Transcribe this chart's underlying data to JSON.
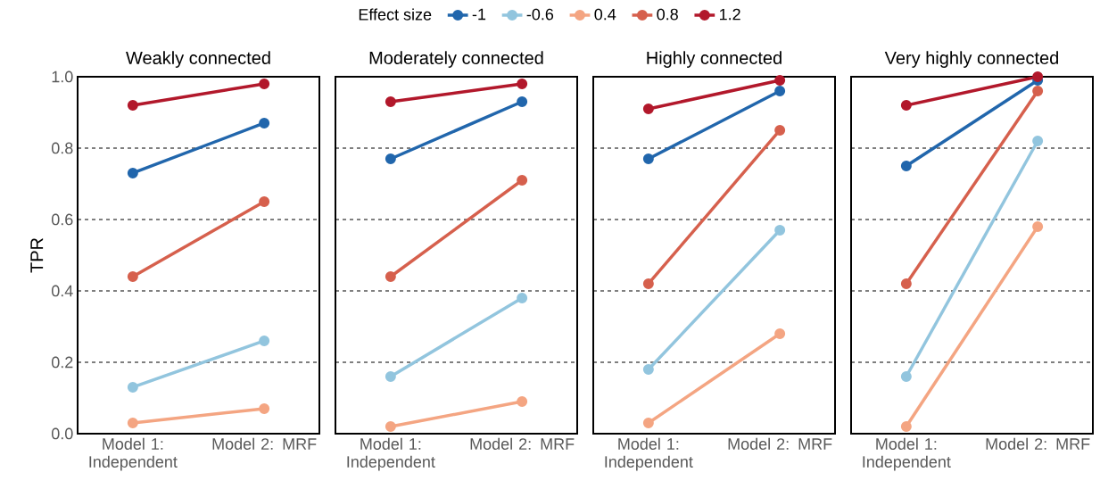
{
  "chart_data": [
    {
      "type": "line",
      "title": "Weakly connected",
      "ylabel": "TPR",
      "legend_title": "Effect size",
      "legend": "top",
      "grid": "y",
      "marker": "circle",
      "line_style": "solid",
      "categories": [
        "Model 1: Independent",
        "Model 2: MRF"
      ],
      "ylim": [
        0,
        1
      ],
      "yticks": [
        {
          "value": 0,
          "label": "0.0"
        },
        0.2,
        0.4,
        0.6,
        0.8,
        {
          "value": 1,
          "label": "1.0"
        }
      ],
      "series": [
        {
          "name": "-1",
          "color": "#2166ac",
          "values": [
            0.73,
            0.87
          ]
        },
        {
          "name": "-0.6",
          "color": "#92c5de",
          "values": [
            0.13,
            0.26
          ]
        },
        {
          "name": "0.4",
          "color": "#f4a582",
          "values": [
            0.03,
            0.07
          ]
        },
        {
          "name": "0.8",
          "color": "#d6604d",
          "values": [
            0.44,
            0.65
          ]
        },
        {
          "name": "1.2",
          "color": "#b2182b",
          "values": [
            0.92,
            0.98
          ]
        }
      ]
    },
    {
      "type": "line",
      "title": "Moderately connected",
      "grid": "y",
      "marker": "circle",
      "line_style": "solid",
      "tick_labels": "x",
      "categories": [
        "Model 1: Independent",
        "Model 2: MRF"
      ],
      "ylim": [
        0,
        1
      ],
      "yticks": [
        0,
        0.2,
        0.4,
        0.6,
        0.8,
        1
      ],
      "series": [
        {
          "color": "#2166ac",
          "values": [
            0.77,
            0.93
          ]
        },
        {
          "color": "#92c5de",
          "values": [
            0.16,
            0.38
          ]
        },
        {
          "color": "#f4a582",
          "values": [
            0.02,
            0.09
          ]
        },
        {
          "color": "#d6604d",
          "values": [
            0.44,
            0.71
          ]
        },
        {
          "color": "#b2182b",
          "values": [
            0.93,
            0.98
          ]
        }
      ]
    },
    {
      "type": "line",
      "title": "Highly connected",
      "grid": "y",
      "marker": "circle",
      "line_style": "solid",
      "tick_labels": "x",
      "categories": [
        "Model 1: Independent",
        "Model 2: MRF"
      ],
      "ylim": [
        0,
        1
      ],
      "yticks": [
        0,
        0.2,
        0.4,
        0.6,
        0.8,
        1
      ],
      "series": [
        {
          "color": "#2166ac",
          "values": [
            0.77,
            0.96
          ]
        },
        {
          "color": "#92c5de",
          "values": [
            0.18,
            0.57
          ]
        },
        {
          "color": "#f4a582",
          "values": [
            0.03,
            0.28
          ]
        },
        {
          "color": "#d6604d",
          "values": [
            0.42,
            0.85
          ]
        },
        {
          "color": "#b2182b",
          "values": [
            0.91,
            0.99
          ]
        }
      ]
    },
    {
      "type": "line",
      "title": "Very highly connected",
      "grid": "y",
      "marker": "circle",
      "line_style": "solid",
      "tick_labels": "x",
      "categories": [
        "Model 1: Independent",
        "Model 2: MRF"
      ],
      "ylim": [
        0,
        1
      ],
      "yticks": [
        0,
        0.2,
        0.4,
        0.6,
        0.8,
        1
      ],
      "series": [
        {
          "color": "#2166ac",
          "values": [
            0.75,
            0.99
          ]
        },
        {
          "color": "#92c5de",
          "values": [
            0.16,
            0.82
          ]
        },
        {
          "color": "#f4a582",
          "values": [
            0.02,
            0.58
          ]
        },
        {
          "color": "#d6604d",
          "values": [
            0.42,
            0.96
          ]
        },
        {
          "color": "#b2182b",
          "values": [
            0.92,
            1.0
          ]
        }
      ]
    }
  ]
}
